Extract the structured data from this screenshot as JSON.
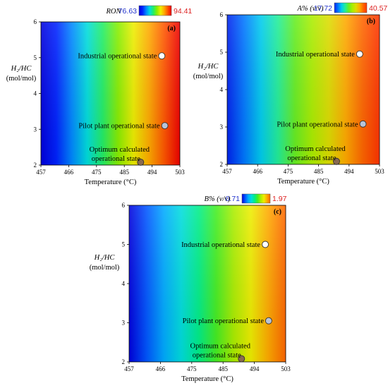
{
  "chart_data": [
    {
      "type": "heatmap",
      "panel_label": "(a)",
      "colorbar_title": "RON",
      "colorbar_min": "76.63",
      "colorbar_max": "94.41",
      "xlabel": "Temperature (°C)",
      "ylabel_line1": "H₂/HC",
      "ylabel_line2": "(mol/mol)",
      "xlim": [
        457,
        503
      ],
      "ylim": [
        2,
        6
      ],
      "x_ticks": [
        "457",
        "466",
        "475",
        "485",
        "494",
        "503"
      ],
      "y_ticks": [
        "2",
        "3",
        "4",
        "5",
        "6"
      ],
      "gradient": [
        "#0000dd",
        "#0022ff",
        "#0088ff",
        "#00dddd",
        "#22ee66",
        "#88ee00",
        "#eeee00",
        "#ffaa00",
        "#ff5500",
        "#ee0000"
      ],
      "points": [
        {
          "label_line1": "Industrial operational state",
          "label_line2": "",
          "x": 497,
          "y": 5.05,
          "color": "#ffffff"
        },
        {
          "label_line1": "Pilot plant operational state",
          "label_line2": "",
          "x": 498,
          "y": 3.1,
          "color": "#b8c4d8"
        },
        {
          "label_line1": "Optimum calculated",
          "label_line2": "operational state",
          "x": 490,
          "y": 2.08,
          "color": "#8a6a50"
        }
      ]
    },
    {
      "type": "heatmap",
      "panel_label": "(b)",
      "colorbar_title": "A% (v/v)",
      "colorbar_min": "17.72",
      "colorbar_max": "40.57",
      "xlabel": "Temperature (°C)",
      "ylabel_line1": "H₂/HC",
      "ylabel_line2": "(mol/mol)",
      "xlim": [
        457,
        503
      ],
      "ylim": [
        2,
        6
      ],
      "x_ticks": [
        "457",
        "466",
        "475",
        "485",
        "494",
        "503"
      ],
      "y_ticks": [
        "2",
        "3",
        "4",
        "5",
        "6"
      ],
      "gradient": [
        "#0022ee",
        "#0077ff",
        "#00ccee",
        "#22ee99",
        "#66ee22",
        "#aaee00",
        "#dddd00",
        "#ffaa00",
        "#ff6600",
        "#ff3300"
      ],
      "points": [
        {
          "label_line1": "Industrial operational state",
          "label_line2": "",
          "x": 497,
          "y": 4.95,
          "color": "#ffffff"
        },
        {
          "label_line1": "Pilot plant operational state",
          "label_line2": "",
          "x": 498,
          "y": 3.08,
          "color": "#b8c4d8"
        },
        {
          "label_line1": "Optimum calculated",
          "label_line2": "operational state",
          "x": 490,
          "y": 2.08,
          "color": "#8a6a50"
        }
      ]
    },
    {
      "type": "heatmap",
      "panel_label": "(c)",
      "colorbar_title": "B% (v/v)",
      "colorbar_min": "0.71",
      "colorbar_max": "1.97",
      "xlabel": "Temperature (°C)",
      "ylabel_line1": "H₂/HC",
      "ylabel_line2": "(mol/mol)",
      "xlim": [
        457,
        503
      ],
      "ylim": [
        2,
        6
      ],
      "x_ticks": [
        "457",
        "466",
        "475",
        "485",
        "494",
        "503"
      ],
      "y_ticks": [
        "2",
        "3",
        "4",
        "5",
        "6"
      ],
      "gradient": [
        "#0000dd",
        "#0055ff",
        "#00aaff",
        "#00dddd",
        "#00ee88",
        "#44ee22",
        "#aaee00",
        "#eeee00",
        "#ffaa00",
        "#ff6600"
      ],
      "points": [
        {
          "label_line1": "Industrial operational state",
          "label_line2": "",
          "x": 497,
          "y": 5.0,
          "color": "#ffffff"
        },
        {
          "label_line1": "Pilot plant operational state",
          "label_line2": "",
          "x": 498,
          "y": 3.05,
          "color": "#b8c4d8"
        },
        {
          "label_line1": "Optimum calculated",
          "label_line2": "operational state",
          "x": 490,
          "y": 2.08,
          "color": "#8a6a50"
        }
      ]
    }
  ]
}
